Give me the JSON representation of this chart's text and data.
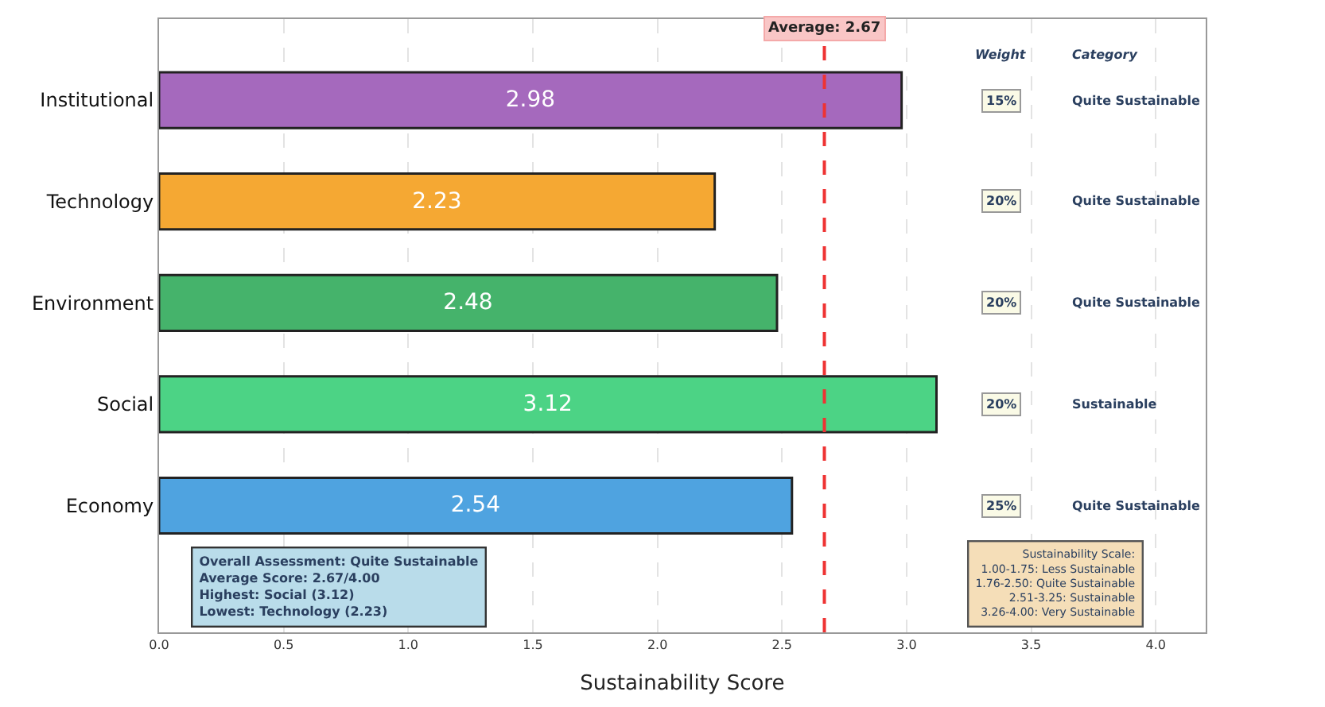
{
  "chart_data": {
    "type": "bar",
    "orientation": "horizontal",
    "xlabel": "Sustainability Score",
    "categories": [
      "Institutional",
      "Technology",
      "Environment",
      "Social",
      "Economy"
    ],
    "values": [
      2.98,
      2.23,
      2.48,
      3.12,
      2.54
    ],
    "colors": [
      "#a569bd",
      "#f5a833",
      "#45b36b",
      "#4cd385",
      "#4fa3e0"
    ],
    "data_labels": true,
    "xlim": [
      0,
      4.2
    ],
    "xticks": [
      {
        "value": 0,
        "label": "0.0"
      },
      0.5,
      {
        "value": 1,
        "label": "1.0"
      },
      1.5,
      {
        "value": 2,
        "label": "2.0"
      },
      2.5,
      {
        "value": 3,
        "label": "3.0"
      },
      3.5,
      {
        "value": 4,
        "label": "4.0"
      }
    ],
    "grid": "x",
    "ref_lines": [
      {
        "axis": "x",
        "value": 2.67,
        "label": "Average: 2.67",
        "color": "#ee3333",
        "line_style": "dashed"
      }
    ],
    "annotations": [
      "Weight",
      "Category",
      "15%",
      "20%",
      "20%",
      "20%",
      "25%",
      "Quite Sustainable",
      "Quite Sustainable",
      "Quite Sustainable",
      "Sustainable",
      "Quite Sustainable",
      "Overall Assessment: Quite Sustainable\nAverage Score: 2.67/4.00\nHighest: Social (3.12)\nLowest: Technology (2.23)",
      "Sustainability Scale:\n1.00-1.75: Less Sustainable\n1.76-2.50: Quite Sustainable\n2.51-3.25: Sustainable\n3.26-4.00: Very Sustainable"
    ]
  }
}
